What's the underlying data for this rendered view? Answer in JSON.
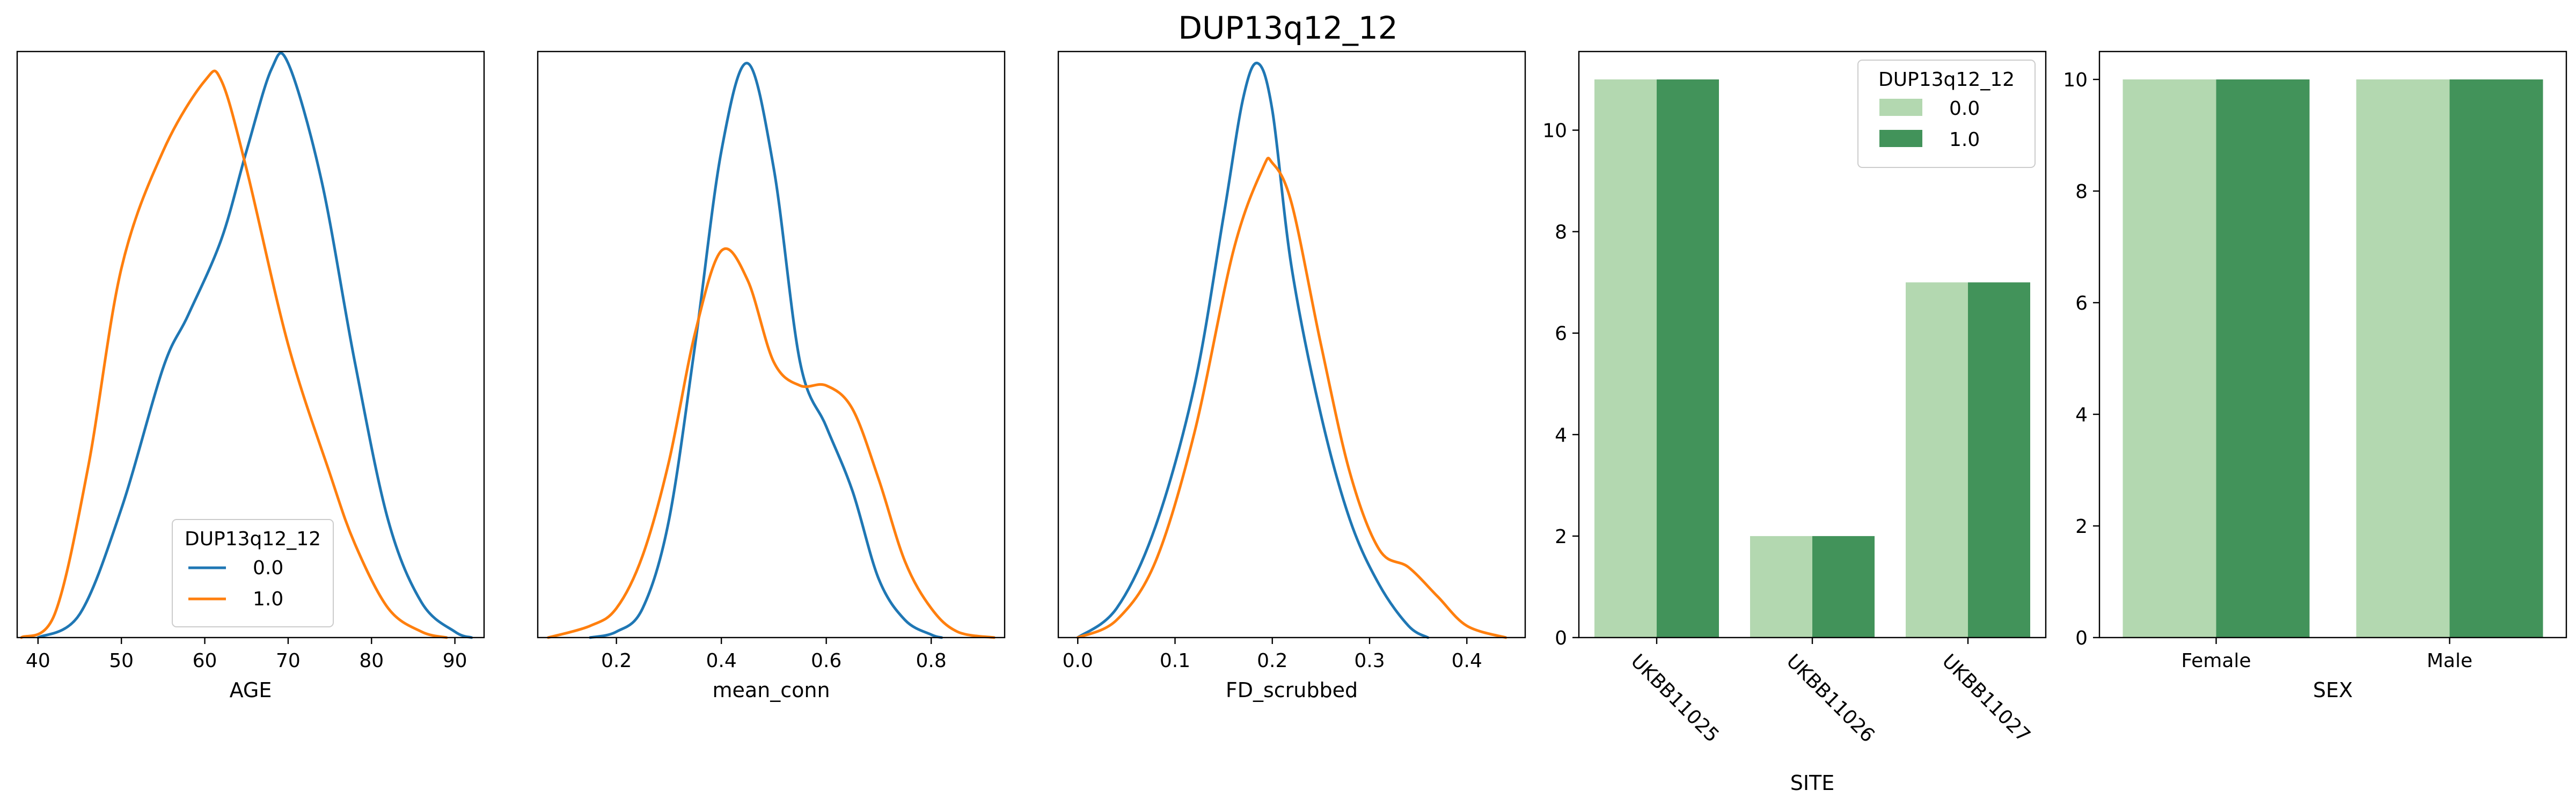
{
  "figure": {
    "title": "DUP13q12_12"
  },
  "colors": {
    "kde_0": "#1f77b4",
    "kde_1": "#ff7f0e",
    "bar_0": "#b3d8b0",
    "bar_1": "#42935a",
    "axis": "#000000"
  },
  "chart_data": [
    {
      "type": "line",
      "chart_kind": "kde",
      "xlabel": "AGE",
      "ylabel": "",
      "xlim": [
        37.5,
        93.5
      ],
      "ylim": [
        0,
        1.0
      ],
      "xticks": [
        40,
        50,
        60,
        70,
        80,
        90
      ],
      "legend": {
        "title": "DUP13q12_12",
        "placement": "lower-center"
      },
      "series": [
        {
          "name": "0.0",
          "x": [
            40,
            45,
            50,
            55,
            58,
            62,
            65,
            68,
            70,
            74,
            78,
            82,
            86,
            90,
            92
          ],
          "y": [
            0.0,
            0.04,
            0.22,
            0.46,
            0.55,
            0.68,
            0.83,
            0.97,
            0.98,
            0.78,
            0.47,
            0.2,
            0.06,
            0.01,
            0.0
          ]
        },
        {
          "name": "1.0",
          "x": [
            38,
            42,
            46,
            50,
            55,
            60,
            62,
            65,
            70,
            75,
            78,
            82,
            86,
            89
          ],
          "y": [
            0.0,
            0.04,
            0.29,
            0.63,
            0.83,
            0.95,
            0.95,
            0.8,
            0.5,
            0.28,
            0.16,
            0.05,
            0.01,
            0.0
          ]
        }
      ]
    },
    {
      "type": "line",
      "chart_kind": "kde",
      "xlabel": "mean_conn",
      "ylabel": "",
      "xlim": [
        0.05,
        0.94
      ],
      "ylim": [
        0,
        1.0
      ],
      "xticks": [
        0.2,
        0.4,
        0.6,
        0.8
      ],
      "series": [
        {
          "name": "0.0",
          "x": [
            0.15,
            0.2,
            0.25,
            0.3,
            0.35,
            0.4,
            0.45,
            0.5,
            0.55,
            0.6,
            0.65,
            0.7,
            0.75,
            0.8,
            0.82
          ],
          "y": [
            0.0,
            0.01,
            0.05,
            0.2,
            0.5,
            0.83,
            0.98,
            0.8,
            0.47,
            0.36,
            0.25,
            0.1,
            0.03,
            0.005,
            0.0
          ]
        },
        {
          "name": "1.0",
          "x": [
            0.07,
            0.15,
            0.2,
            0.25,
            0.3,
            0.35,
            0.4,
            0.45,
            0.5,
            0.55,
            0.6,
            0.65,
            0.7,
            0.75,
            0.8,
            0.85,
            0.92
          ],
          "y": [
            0.0,
            0.02,
            0.05,
            0.14,
            0.3,
            0.52,
            0.66,
            0.61,
            0.47,
            0.43,
            0.43,
            0.39,
            0.27,
            0.13,
            0.05,
            0.01,
            0.0
          ]
        }
      ]
    },
    {
      "type": "line",
      "chart_kind": "kde",
      "xlabel": "FD_scrubbed",
      "ylabel": "",
      "xlim": [
        -0.02,
        0.46
      ],
      "ylim": [
        0,
        1.0
      ],
      "xticks": [
        0.0,
        0.1,
        0.2,
        0.3,
        0.4
      ],
      "series": [
        {
          "name": "0.0",
          "x": [
            0.0,
            0.04,
            0.08,
            0.12,
            0.15,
            0.17,
            0.185,
            0.2,
            0.22,
            0.25,
            0.28,
            0.31,
            0.34,
            0.36
          ],
          "y": [
            0.0,
            0.05,
            0.19,
            0.43,
            0.72,
            0.92,
            0.98,
            0.9,
            0.63,
            0.38,
            0.2,
            0.09,
            0.02,
            0.0
          ]
        },
        {
          "name": "1.0",
          "x": [
            0.0,
            0.04,
            0.08,
            0.12,
            0.16,
            0.19,
            0.2,
            0.22,
            0.25,
            0.28,
            0.31,
            0.34,
            0.37,
            0.4,
            0.44
          ],
          "y": [
            0.0,
            0.03,
            0.13,
            0.35,
            0.66,
            0.8,
            0.81,
            0.74,
            0.5,
            0.28,
            0.15,
            0.12,
            0.07,
            0.02,
            0.0
          ]
        }
      ]
    },
    {
      "type": "bar",
      "xlabel": "SITE",
      "ylabel": "",
      "ylim": [
        0,
        11.55
      ],
      "yticks": [
        0,
        2,
        4,
        6,
        8,
        10
      ],
      "categories": [
        "UKBB11025",
        "UKBB11026",
        "UKBB11027"
      ],
      "legend": {
        "title": "DUP13q12_12",
        "placement": "top-right"
      },
      "series": [
        {
          "name": "0.0",
          "values": [
            11,
            2,
            7
          ]
        },
        {
          "name": "1.0",
          "values": [
            11,
            2,
            7
          ]
        }
      ]
    },
    {
      "type": "bar",
      "xlabel": "SEX",
      "ylabel": "",
      "ylim": [
        0,
        10.5
      ],
      "yticks": [
        0,
        2,
        4,
        6,
        8,
        10
      ],
      "categories": [
        "Female",
        "Male"
      ],
      "series": [
        {
          "name": "0.0",
          "values": [
            10,
            10
          ]
        },
        {
          "name": "1.0",
          "values": [
            10,
            10
          ]
        }
      ]
    }
  ]
}
